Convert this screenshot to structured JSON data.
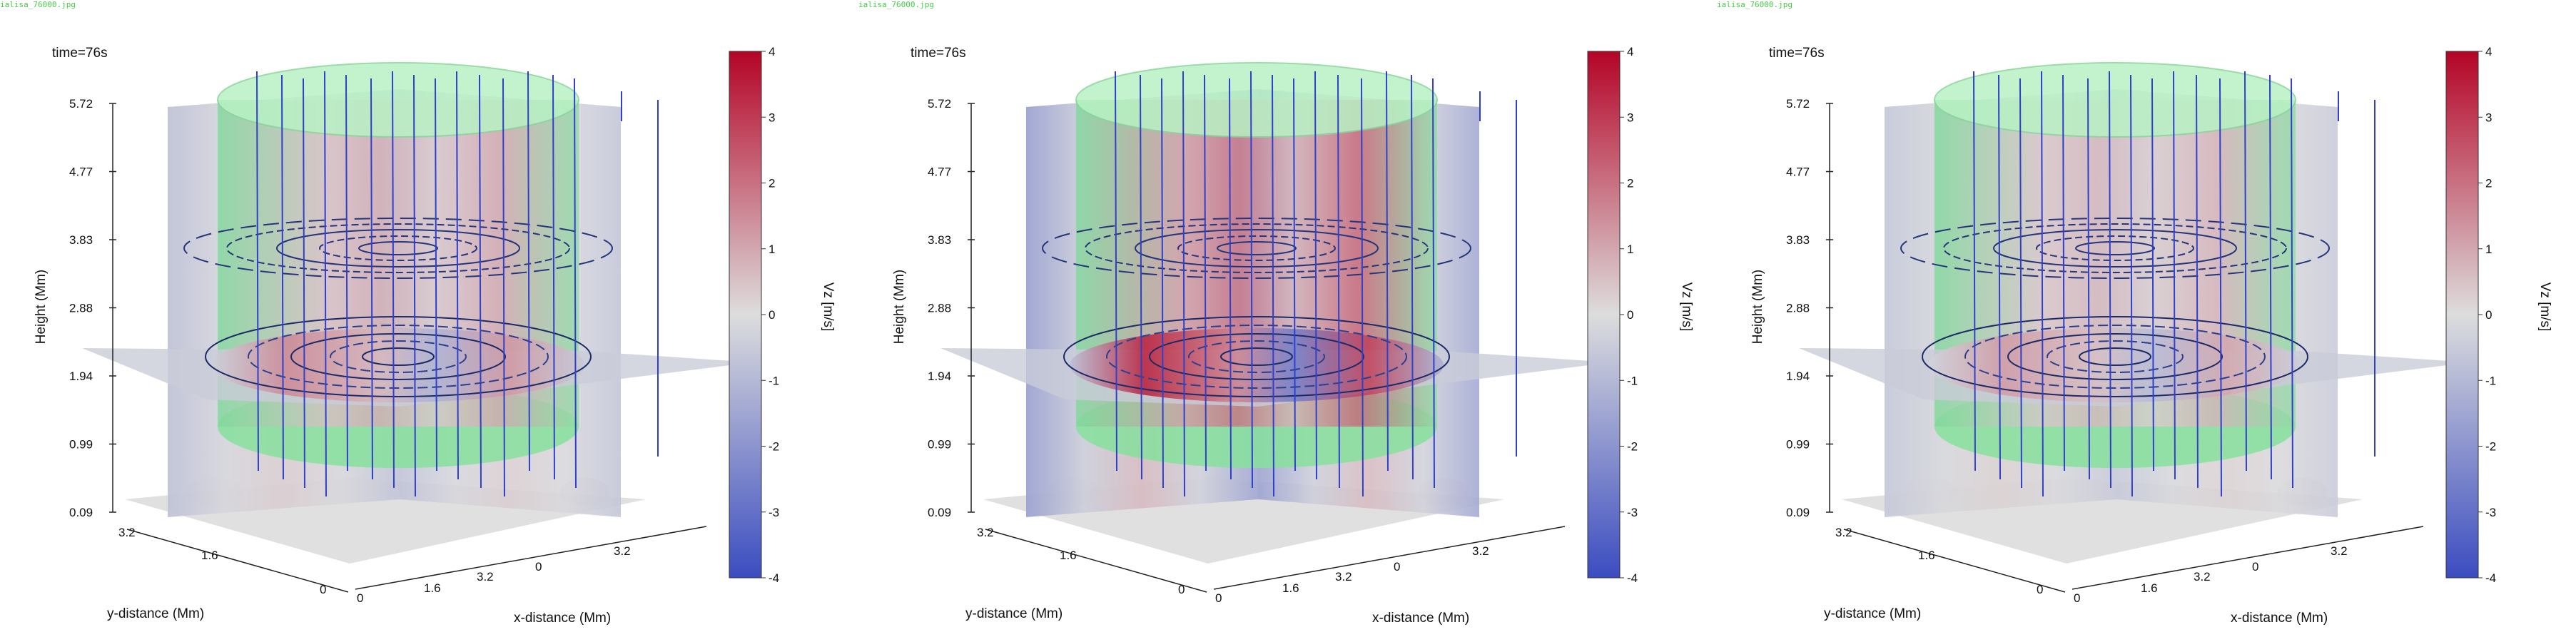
{
  "chart_data": [
    {
      "type": "heatmap",
      "filename": "ialisa_76000.jpg",
      "time_label": "time=76s",
      "zlabel": "Height (Mm)",
      "xlabel": "x-distance (Mm)",
      "ylabel": "y-distance (Mm)",
      "colorbar_label": "Vz [m/s]",
      "z_ticks": [
        "0.09",
        "0.99",
        "1.94",
        "2.88",
        "3.83",
        "4.77",
        "5.72"
      ],
      "x_ticks": [
        "0",
        "1.6",
        "3.2",
        "0",
        "3.2"
      ],
      "y_ticks": [
        "0",
        "1.6",
        "3.2"
      ],
      "colorbar_ticks": [
        "-4",
        "-3",
        "-2",
        "-1",
        "0",
        "1",
        "2",
        "3",
        "4"
      ],
      "clim": [
        -4,
        4
      ],
      "colormap": [
        "#3b4cc0",
        "#dddddd",
        "#b40426"
      ],
      "intensity": 0.45
    },
    {
      "type": "heatmap",
      "filename": "ialisa_76000.jpg",
      "time_label": "time=76s",
      "zlabel": "Height (Mm)",
      "xlabel": "x-distance (Mm)",
      "ylabel": "y-distance (Mm)",
      "colorbar_label": "Vz [m/s]",
      "z_ticks": [
        "0.09",
        "0.99",
        "1.94",
        "2.88",
        "3.83",
        "4.77",
        "5.72"
      ],
      "x_ticks": [
        "0",
        "1.6",
        "3.2",
        "0",
        "3.2"
      ],
      "y_ticks": [
        "0",
        "1.6",
        "3.2"
      ],
      "colorbar_ticks": [
        "-4",
        "-3",
        "-2",
        "-1",
        "0",
        "1",
        "2",
        "3",
        "4"
      ],
      "clim": [
        -4,
        4
      ],
      "colormap": [
        "#3b4cc0",
        "#dddddd",
        "#b40426"
      ],
      "intensity": 1.0
    },
    {
      "type": "heatmap",
      "filename": "ialisa_76000.jpg",
      "time_label": "time=76s",
      "zlabel": "Height (Mm)",
      "xlabel": "x-distance (Mm)",
      "ylabel": "y-distance (Mm)",
      "colorbar_label": "Vz [m/s]",
      "z_ticks": [
        "0.09",
        "0.99",
        "1.94",
        "2.88",
        "3.83",
        "4.77",
        "5.72"
      ],
      "x_ticks": [
        "0",
        "1.6",
        "3.2",
        "0",
        "3.2"
      ],
      "y_ticks": [
        "0",
        "1.6",
        "3.2"
      ],
      "colorbar_ticks": [
        "-4",
        "-3",
        "-2",
        "-1",
        "0",
        "1",
        "2",
        "3",
        "4"
      ],
      "clim": [
        -4,
        4
      ],
      "colormap": [
        "#3b4cc0",
        "#dddddd",
        "#b40426"
      ],
      "intensity": 0.35
    }
  ]
}
